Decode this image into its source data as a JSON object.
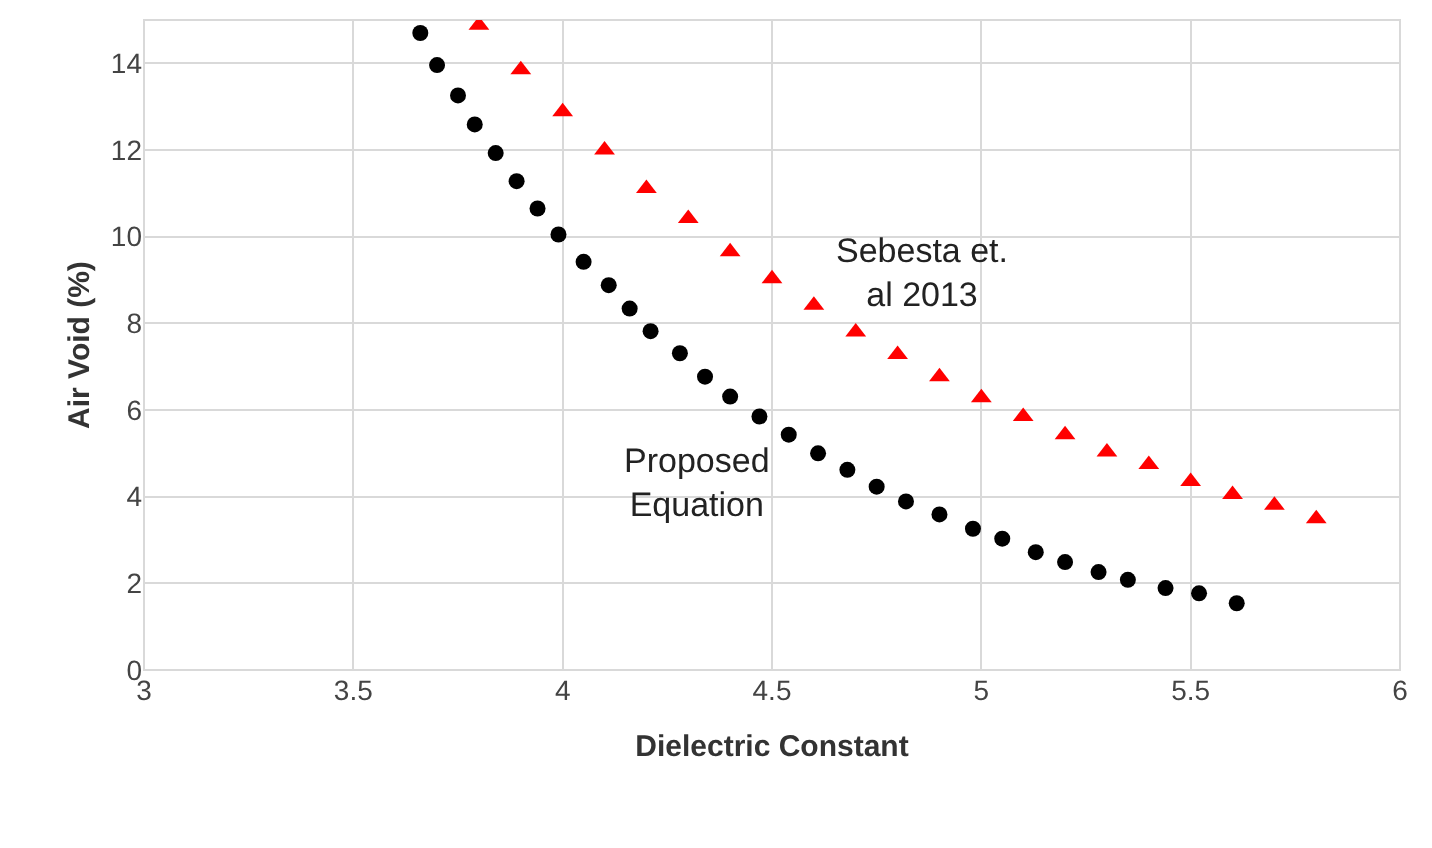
{
  "chart_data": {
    "type": "scatter",
    "xlabel": "Dielectric Constant",
    "ylabel": "Air Void (%)",
    "xlim": [
      3,
      6
    ],
    "xticks": [
      3,
      3.5,
      4,
      4.5,
      5,
      5.5,
      6
    ],
    "ylim": [
      0,
      15
    ],
    "yticks": [
      0,
      2,
      4,
      6,
      8,
      10,
      12,
      14
    ],
    "grid": true,
    "legend": false,
    "series": [
      {
        "name": "Proposed\nEquation",
        "color": "#000000",
        "marker": "circle",
        "x": [
          3.66,
          3.7,
          3.75,
          3.79,
          3.84,
          3.89,
          3.94,
          3.99,
          4.05,
          4.11,
          4.16,
          4.21,
          4.28,
          4.34,
          4.4,
          4.47,
          4.54,
          4.61,
          4.68,
          4.75,
          4.82,
          4.9,
          4.98,
          5.05,
          5.13,
          5.2,
          5.28,
          5.35,
          5.44,
          5.52,
          5.61
        ],
        "values": [
          14.7,
          13.96,
          13.26,
          12.59,
          11.93,
          11.28,
          10.65,
          10.05,
          9.42,
          8.88,
          8.34,
          7.82,
          7.31,
          6.77,
          6.31,
          5.85,
          5.43,
          5.0,
          4.62,
          4.23,
          3.89,
          3.59,
          3.26,
          3.03,
          2.72,
          2.49,
          2.26,
          2.08,
          1.89,
          1.77,
          1.54
        ]
      },
      {
        "name": "Sebesta et.\nal 2013",
        "color": "#ff0000",
        "marker": "triangle",
        "x": [
          3.8,
          3.9,
          4.0,
          4.1,
          4.2,
          4.3,
          4.4,
          4.5,
          4.6,
          4.7,
          4.8,
          4.9,
          5.0,
          5.1,
          5.2,
          5.3,
          5.4,
          5.5,
          5.6,
          5.7,
          5.8
        ],
        "values": [
          14.88,
          13.85,
          12.88,
          12.0,
          11.11,
          10.42,
          9.65,
          9.03,
          8.42,
          7.8,
          7.28,
          6.77,
          6.28,
          5.85,
          5.43,
          5.03,
          4.74,
          4.35,
          4.05,
          3.8,
          3.49
        ]
      }
    ]
  }
}
